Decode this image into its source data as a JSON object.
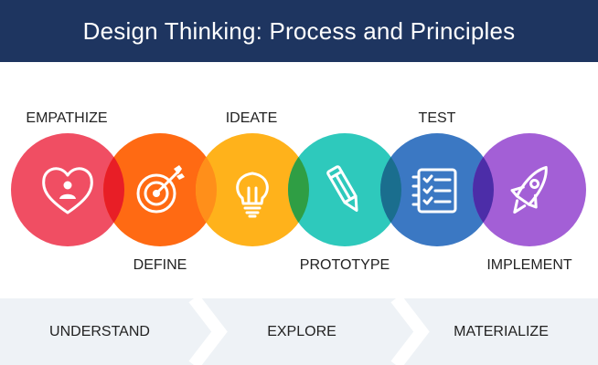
{
  "header": {
    "title": "Design Thinking: Process and Principles"
  },
  "stages": [
    {
      "label": "EMPATHIZE",
      "icon": "heart-person-icon",
      "color": "#f04e63"
    },
    {
      "label": "DEFINE",
      "icon": "target-icon",
      "color": "#ff6a13"
    },
    {
      "label": "IDEATE",
      "icon": "lightbulb-icon",
      "color": "#ffb21b"
    },
    {
      "label": "PROTOTYPE",
      "icon": "pencil-icon",
      "color": "#2ec9bc"
    },
    {
      "label": "TEST",
      "icon": "checklist-icon",
      "color": "#3b78c3"
    },
    {
      "label": "IMPLEMENT",
      "icon": "rocket-icon",
      "color": "#a35fd6"
    }
  ],
  "overlap_colors": [
    "#e81e26",
    "#ff8f1a",
    "#2f9e44",
    "#1a6e8e",
    "#4c2da8"
  ],
  "phases": [
    {
      "label": "UNDERSTAND"
    },
    {
      "label": "EXPLORE"
    },
    {
      "label": "MATERIALIZE"
    }
  ],
  "footer_color": "#eef2f6"
}
